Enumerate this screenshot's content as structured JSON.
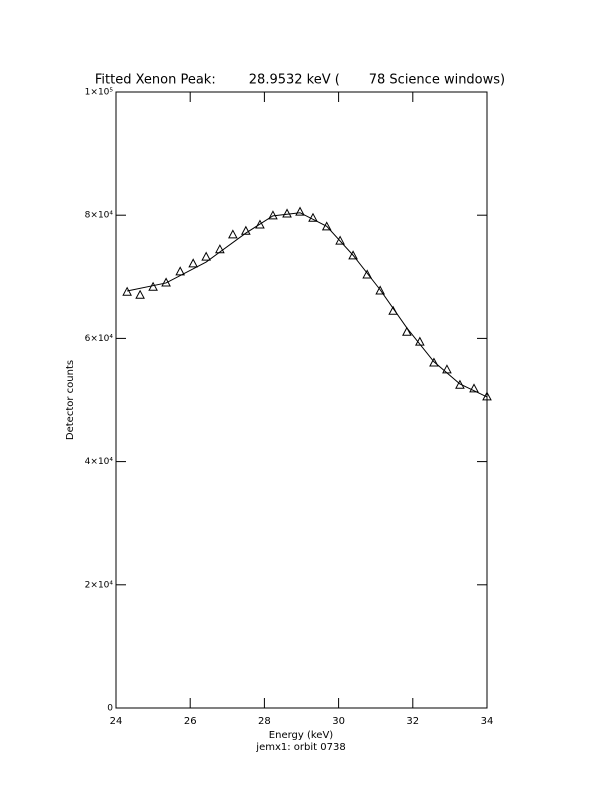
{
  "chart_data": {
    "type": "scatter",
    "title": "Fitted Xenon Peak:        28.9532 keV (       78 Science windows)",
    "xlabel": "Energy (keV)",
    "subtitle": "jemx1: orbit 0738",
    "ylabel": "Detector counts",
    "xlim": [
      24,
      34
    ],
    "xticks": [
      24,
      26,
      28,
      30,
      32,
      34
    ],
    "ylim": [
      0,
      100000
    ],
    "yticks": [
      0,
      {
        "value": 20000,
        "label": "2×10⁴"
      },
      {
        "value": 40000,
        "label": "4×10⁴"
      },
      {
        "value": 60000,
        "label": "6×10⁴"
      },
      {
        "value": 80000,
        "label": "8×10⁴"
      },
      {
        "value": 100000,
        "label": "1×10⁵"
      }
    ],
    "series": [
      {
        "marker": "triangle",
        "color": "#000000",
        "x": [
          24.3,
          24.65,
          25.0,
          25.35,
          25.73,
          26.08,
          26.43,
          26.8,
          27.15,
          27.5,
          27.88,
          28.23,
          28.61,
          28.96,
          29.31,
          29.68,
          30.04,
          30.39,
          30.77,
          31.12,
          31.47,
          31.84,
          32.19,
          32.57,
          32.92,
          33.27,
          33.65,
          34.0
        ],
        "values": [
          67500,
          67000,
          68300,
          69000,
          70800,
          72100,
          73200,
          74400,
          76800,
          77400,
          78400,
          79900,
          80200,
          80500,
          79500,
          78100,
          75800,
          73400,
          70300,
          67700,
          64400,
          61000,
          59400,
          56000,
          54900,
          52400,
          51800,
          50500
        ]
      },
      {
        "marker": "line",
        "color": "#000000",
        "x": [
          24.3,
          25.35,
          26.43,
          27.5,
          28.23,
          28.96,
          29.68,
          30.39,
          31.12,
          31.84,
          32.57,
          33.27,
          34.0
        ],
        "values": [
          67700,
          69000,
          72400,
          77100,
          79900,
          80400,
          78200,
          73500,
          67900,
          61700,
          56200,
          52600,
          50500
        ]
      }
    ]
  }
}
